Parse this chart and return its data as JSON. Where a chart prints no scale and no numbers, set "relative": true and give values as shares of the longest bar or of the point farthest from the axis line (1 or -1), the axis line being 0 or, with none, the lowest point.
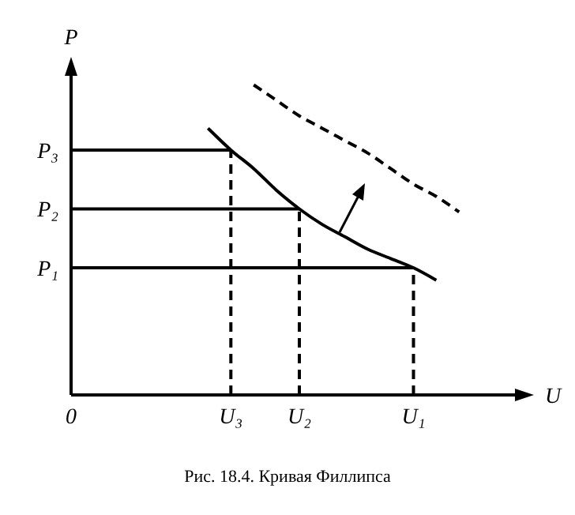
{
  "chart_data": {
    "type": "line",
    "title": "Рис. 18.4. Кривая Филлипса",
    "xlabel": "U",
    "ylabel": "P",
    "relative": true,
    "marker": "none",
    "categories": [
      "0",
      null,
      null,
      null,
      null,
      null,
      null,
      "U₃",
      null,
      null,
      "U₂",
      null,
      null,
      null,
      null,
      "U₁",
      null,
      null,
      null,
      null,
      null
    ],
    "series": [
      {
        "color": "#000000",
        "line_style": "solid",
        "values": [
          null,
          null,
          null,
          null,
          null,
          null,
          0.86,
          0.79,
          0.73,
          0.66,
          0.6,
          0.55,
          0.51,
          0.47,
          0.44,
          0.41,
          0.37,
          null,
          null,
          null,
          null
        ]
      },
      {
        "color": "#000000",
        "line_style": "dashed",
        "values": [
          null,
          null,
          null,
          null,
          null,
          null,
          null,
          null,
          1,
          0.95,
          0.9,
          0.86,
          0.82,
          0.78,
          0.73,
          0.68,
          0.64,
          0.59,
          null,
          null,
          null
        ]
      },
      {
        "name": "P₃",
        "color": "#000000",
        "line_style": "solid",
        "values": [
          0.79,
          0.79,
          0.79,
          0.79,
          0.79,
          0.79,
          0.79,
          0.79,
          null,
          null,
          null,
          null,
          null,
          null,
          null,
          null,
          null,
          null,
          null,
          null,
          null
        ]
      },
      {
        "name": "P₂",
        "color": "#000000",
        "line_style": "solid",
        "values": [
          0.6,
          0.6,
          0.6,
          0.6,
          0.6,
          0.6,
          0.6,
          0.6,
          0.6,
          0.6,
          0.6,
          null,
          null,
          null,
          null,
          null,
          null,
          null,
          null,
          null,
          null
        ]
      },
      {
        "name": "P₁",
        "color": "#000000",
        "line_style": "solid",
        "values": [
          0.41,
          0.41,
          0.41,
          0.41,
          0.41,
          0.41,
          0.41,
          0.41,
          0.41,
          0.41,
          0.41,
          0.41,
          0.41,
          0.41,
          0.41,
          0.41,
          null,
          null,
          null,
          null,
          null
        ]
      },
      {
        "color": "#000000",
        "line_style": "dashed",
        "x": [
          "U₃",
          "U₃"
        ],
        "values": [
          0,
          0.79
        ]
      },
      {
        "color": "#000000",
        "line_style": "dashed",
        "x": [
          "U₂",
          "U₂"
        ],
        "values": [
          0,
          0.6
        ]
      },
      {
        "color": "#000000",
        "line_style": "dashed",
        "x": [
          "U₁",
          "U₁"
        ],
        "values": [
          0,
          0.41
        ]
      }
    ]
  }
}
